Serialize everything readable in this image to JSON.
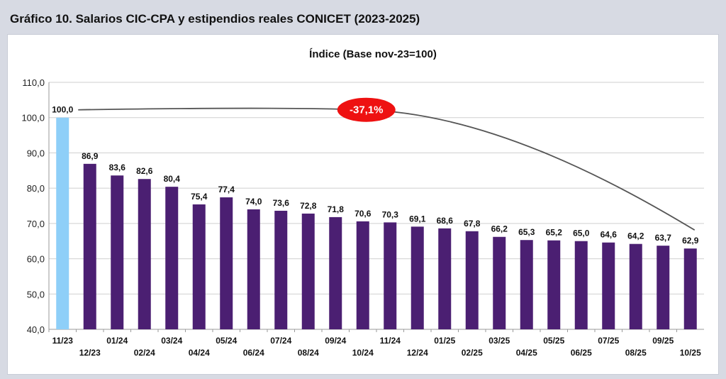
{
  "page": {
    "title": "Gráfico 10. Salarios CIC-CPA y estipendios reales CONICET (2023-2025)"
  },
  "chart_data": {
    "type": "bar",
    "subtitle": "Índice (Base nov-23=100)",
    "categories": [
      "11/23",
      "12/23",
      "01/24",
      "02/24",
      "03/24",
      "04/24",
      "05/24",
      "06/24",
      "07/24",
      "08/24",
      "09/24",
      "10/24",
      "11/24",
      "12/24",
      "01/25",
      "02/25",
      "03/25",
      "04/25",
      "05/25",
      "06/25",
      "07/25",
      "08/25",
      "09/25",
      "10/25"
    ],
    "values": [
      100.0,
      86.9,
      83.6,
      82.6,
      80.4,
      75.4,
      77.4,
      74.0,
      73.6,
      72.8,
      71.8,
      70.6,
      70.3,
      69.1,
      68.6,
      67.8,
      66.2,
      65.3,
      65.2,
      65.0,
      64.6,
      64.2,
      63.7,
      62.9
    ],
    "value_labels": [
      "100,0",
      "86,9",
      "83,6",
      "82,6",
      "80,4",
      "75,4",
      "77,4",
      "74,0",
      "73,6",
      "72,8",
      "71,8",
      "70,6",
      "70,3",
      "69,1",
      "68,6",
      "67,8",
      "66,2",
      "65,3",
      "65,2",
      "65,0",
      "64,6",
      "64,2",
      "63,7",
      "62,9"
    ],
    "ylim": [
      40,
      110
    ],
    "ytick_labels": [
      "40,0",
      "50,0",
      "60,0",
      "70,0",
      "80,0",
      "90,0",
      "100,0",
      "110,0"
    ],
    "grid": true,
    "colors": {
      "base_bar": "#8ecff8",
      "bar": "#4b1f72",
      "annotation": "#ee1111",
      "trend_line": "#555555"
    },
    "annotation": {
      "text": "-37,1%",
      "shape": "red-ellipse",
      "from_category": "11/23",
      "to_category": "10/25"
    }
  }
}
